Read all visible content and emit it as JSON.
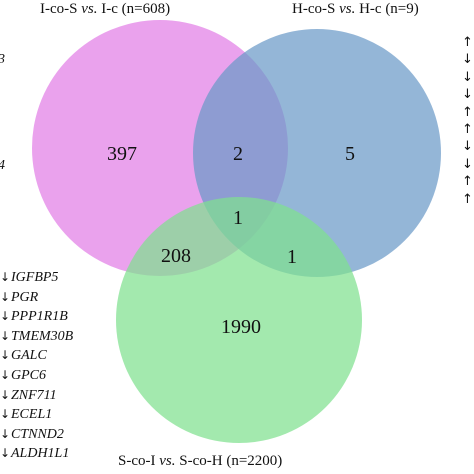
{
  "sets": {
    "a": {
      "label_left": "I-co-S ",
      "label_vs": "vs.",
      "label_right": " I-c (n=608)",
      "color": "#e27ee6"
    },
    "b": {
      "label_left": "H-co-S ",
      "label_vs": "vs.",
      "label_right": " H-c (n=9)",
      "color": "#6b9ac8"
    },
    "c": {
      "label_left": "S-co-I ",
      "label_vs": "vs.",
      "label_right": " S-co-H (n=2200)",
      "color": "#7fe08f"
    }
  },
  "regions": {
    "a_only": "397",
    "ab": "2",
    "b_only": "5",
    "abc": "1",
    "ac": "208",
    "bc": "1",
    "c_only": "1990"
  },
  "left_fragments": [
    "3",
    "4"
  ],
  "gene_list": [
    {
      "arrow": "↓",
      "gene": "IGFBP5"
    },
    {
      "arrow": "↓",
      "gene": "PGR"
    },
    {
      "arrow": "↓",
      "gene": "PPP1R1B"
    },
    {
      "arrow": "↓",
      "gene": "TMEM30B"
    },
    {
      "arrow": "↓",
      "gene": "GALC"
    },
    {
      "arrow": "↓",
      "gene": "GPC6"
    },
    {
      "arrow": "↓",
      "gene": "ZNF711"
    },
    {
      "arrow": "↓",
      "gene": "ECEL1"
    },
    {
      "arrow": "↓",
      "gene": "CTNND2"
    },
    {
      "arrow": "↓",
      "gene": "ALDH1L1"
    }
  ],
  "right_arrows": [
    "↑",
    "↓",
    "↓",
    "↓",
    "↑",
    "↑",
    "↓",
    "↓",
    "↑",
    "↑"
  ]
}
